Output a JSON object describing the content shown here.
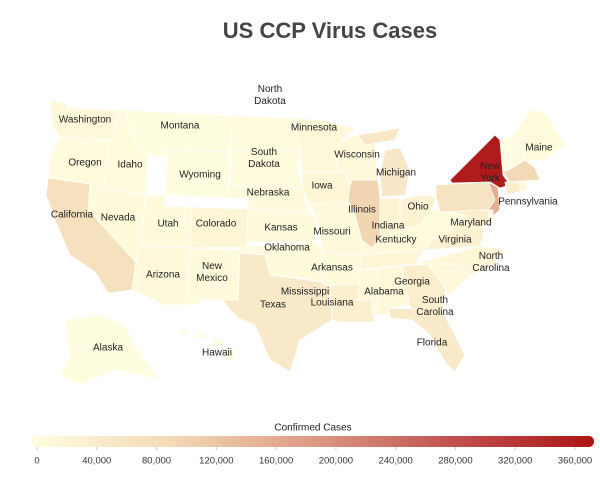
{
  "chart_data": {
    "type": "choropleth",
    "title": "US CCP Virus Cases",
    "legend_title": "Confirmed Cases",
    "scale_colors": [
      "#fffddf",
      "#f3d9b5",
      "#dc9a85",
      "#c25050",
      "#ad1515"
    ],
    "range": [
      0,
      360000
    ],
    "ticks": [
      0,
      {
        "value": 40000,
        "label": "40,000"
      },
      {
        "value": 80000,
        "label": "80,000"
      },
      {
        "value": 120000,
        "label": "120,000"
      },
      {
        "value": 160000,
        "label": "160,000"
      },
      {
        "value": 200000,
        "label": "200,000"
      },
      {
        "value": 240000,
        "label": "240,000"
      },
      {
        "value": 280000,
        "label": "280,000"
      },
      {
        "value": 320000,
        "label": "320,000"
      },
      {
        "value": 360000,
        "label": "360,000"
      }
    ],
    "regions": [
      {
        "name": "Washington",
        "value": 13000
      },
      {
        "name": "Oregon",
        "value": 2500
      },
      {
        "name": "California",
        "value": 70000
      },
      {
        "name": "Nevada",
        "value": 6000
      },
      {
        "name": "Idaho",
        "value": 2000
      },
      {
        "name": "Montana",
        "value": 500
      },
      {
        "name": "Wyoming",
        "value": 700
      },
      {
        "name": "Utah",
        "value": 6000
      },
      {
        "name": "Colorado",
        "value": 20000
      },
      {
        "name": "Arizona",
        "value": 10000
      },
      {
        "name": "New Mexico",
        "value": 5000
      },
      {
        "name": "North Dakota",
        "value": 1500
      },
      {
        "name": "South Dakota",
        "value": 3500
      },
      {
        "name": "Nebraska",
        "value": 8000
      },
      {
        "name": "Kansas",
        "value": 7000
      },
      {
        "name": "Oklahoma",
        "value": 5000
      },
      {
        "name": "Texas",
        "value": 50000
      },
      {
        "name": "Minnesota",
        "value": 12000
      },
      {
        "name": "Iowa",
        "value": 14000
      },
      {
        "name": "Missouri",
        "value": 10000
      },
      {
        "name": "Arkansas",
        "value": 5000
      },
      {
        "name": "Louisiana",
        "value": 35000
      },
      {
        "name": "Mississippi",
        "value": 11000
      },
      {
        "name": "Alabama",
        "value": 12000
      },
      {
        "name": "Georgia",
        "value": 38000
      },
      {
        "name": "Florida",
        "value": 45000
      },
      {
        "name": "South Carolina",
        "value": 9000
      },
      {
        "name": "North Carolina",
        "value": 18000
      },
      {
        "name": null,
        "value": 20000
      },
      {
        "name": "Kentucky",
        "value": 7000
      },
      {
        "name": "Virginia",
        "value": 30000
      },
      {
        "name": null,
        "value": 1500
      },
      {
        "name": "Ohio",
        "value": 27000
      },
      {
        "name": "Indiana",
        "value": 25000
      },
      {
        "name": "Illinois",
        "value": 95000
      },
      {
        "name": "Wisconsin",
        "value": 11000
      },
      {
        "name": "Michigan",
        "value": 52000
      },
      {
        "name": null,
        "value": 52000
      },
      {
        "name": "Pennsylvania",
        "value": 65000
      },
      {
        "name": "New York",
        "value": 350000
      },
      {
        "name": null,
        "value": 150000
      },
      {
        "name": "Maryland",
        "value": 38000
      },
      {
        "name": null,
        "value": 8000
      },
      {
        "name": null,
        "value": 900
      },
      {
        "name": null,
        "value": 3500
      },
      {
        "name": "Maine",
        "value": 1800
      },
      {
        "name": null,
        "value": 88000
      },
      {
        "name": null,
        "value": 38000
      },
      {
        "name": null,
        "value": 13000
      },
      {
        "name": "Alaska",
        "value": 400
      },
      {
        "name": "Hawaii",
        "value": 640
      }
    ]
  }
}
